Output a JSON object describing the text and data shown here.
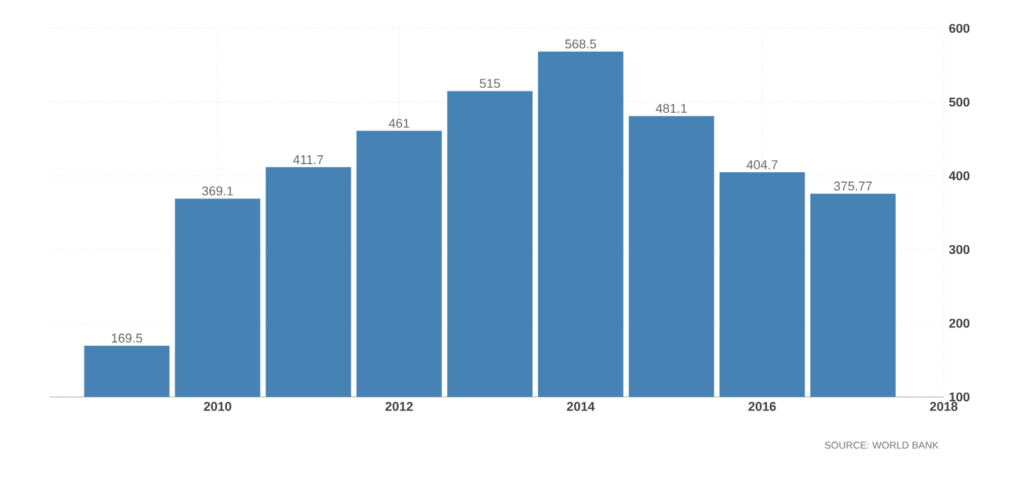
{
  "chart_data": {
    "type": "bar",
    "x": [
      2009,
      2010,
      2011,
      2012,
      2013,
      2014,
      2015,
      2016,
      2017
    ],
    "values": [
      169.5,
      369.1,
      411.7,
      461,
      515,
      568.5,
      481.1,
      404.7,
      375.77
    ],
    "color": "#4682b4",
    "data_labels": true,
    "xlim": [
      2008.15,
      2018
    ],
    "xticks": [
      2010,
      2012,
      2014,
      2016,
      2018
    ],
    "ylim": [
      100,
      600
    ],
    "yticks": [
      100,
      200,
      300,
      400,
      500,
      600
    ],
    "grid": true,
    "annotations": [
      "SOURCE: WORLD BANK"
    ]
  }
}
